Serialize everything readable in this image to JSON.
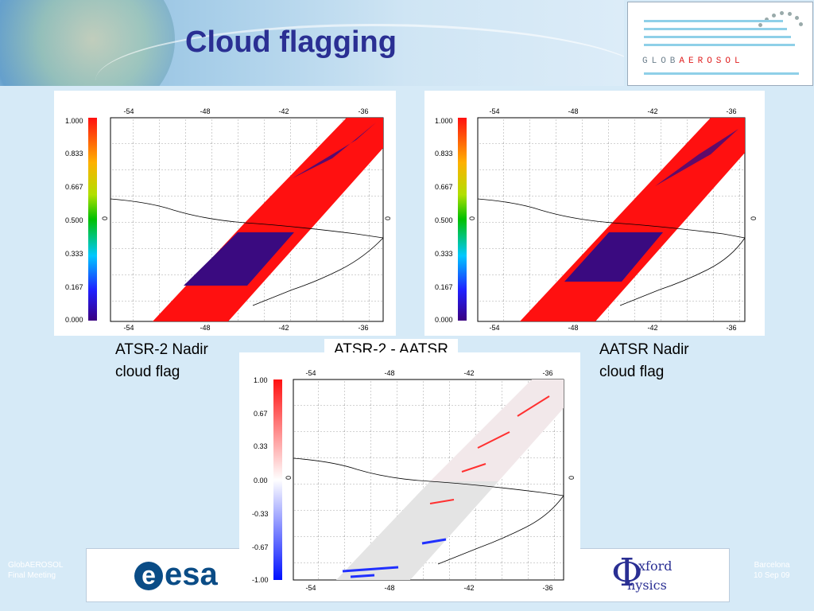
{
  "slide": {
    "title": "Cloud flagging",
    "logo_prefix": "GLOB",
    "logo_accent": "AEROSOL",
    "accent_color": "#2a2f93"
  },
  "panels": {
    "left": {
      "caption": [
        "ATSR-2 Nadir",
        "cloud flag"
      ],
      "colorbar_ticks": [
        "1.000",
        "0.833",
        "0.667",
        "0.500",
        "0.333",
        "0.167",
        "0.000"
      ],
      "lon_ticks": [
        "-54",
        "-48",
        "-42",
        "-36"
      ],
      "lat_tick": "0"
    },
    "middle": {
      "caption": "ATSR-2 - AATSR",
      "colorbar_ticks": [
        "1.00",
        "0.67",
        "0.33",
        "0.00",
        "-0.33",
        "-0.67",
        "-1.00"
      ],
      "lon_ticks": [
        "-54",
        "-48",
        "-42",
        "-36"
      ],
      "lat_tick": "0"
    },
    "right": {
      "caption": [
        "AATSR Nadir",
        "cloud flag"
      ],
      "colorbar_ticks": [
        "1.000",
        "0.833",
        "0.667",
        "0.500",
        "0.333",
        "0.167",
        "0.000"
      ],
      "lon_ticks": [
        "-54",
        "-48",
        "-42",
        "-36"
      ],
      "lat_tick": "0"
    }
  },
  "footer": {
    "left": [
      "GlobAEROSOL",
      "Final Meeting"
    ],
    "right": [
      "Barcelona",
      "10 Sep 09"
    ],
    "esa_label": "esa",
    "oxford_top": "xford",
    "oxford_bottom": "hysics"
  }
}
